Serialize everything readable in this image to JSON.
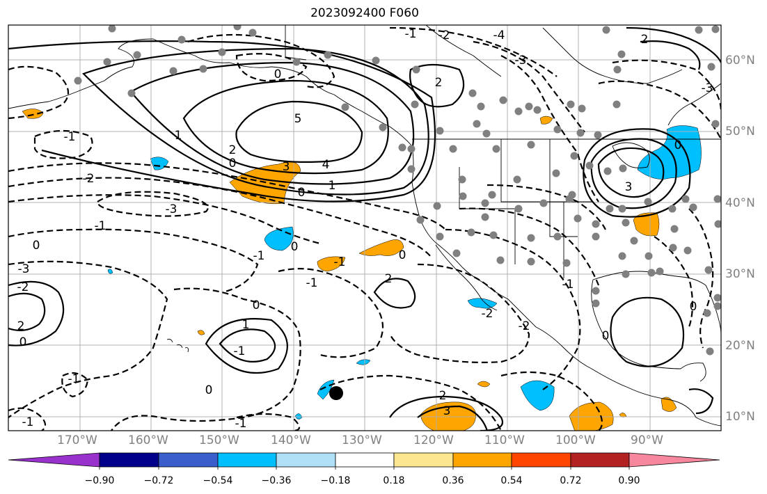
{
  "title": "2023092400 F060",
  "lon_labels": [
    "170°W",
    "160°W",
    "150°W",
    "140°W",
    "130°W",
    "120°W",
    "110°W",
    "100°W",
    "90°W"
  ],
  "lat_labels": [
    "60°N",
    "50°N",
    "40°N",
    "30°N",
    "20°N",
    "10°N"
  ],
  "colorbar": {
    "ticks": [
      "−0.90",
      "−0.72",
      "−0.54",
      "−0.36",
      "−0.18",
      "0.18",
      "0.36",
      "0.54",
      "0.72",
      "0.90"
    ],
    "colors": [
      "#9932cc",
      "#00008b",
      "#3a5fcd",
      "#00bfff",
      "#b0e0f8",
      "#ffffff",
      "#fce68f",
      "#ffa500",
      "#ff4500",
      "#b22222",
      "#f7879d"
    ]
  },
  "contour_labels": [
    "-1",
    "-2",
    "-3",
    "-4",
    "0",
    "-1",
    "1",
    "2",
    "3",
    "4",
    "5",
    "0",
    "1",
    "2",
    "-3",
    "-2",
    "-1",
    "0",
    "-3",
    "-2",
    "0",
    "0",
    "-1",
    "-1",
    "0",
    "0",
    "-1",
    "0",
    "1",
    "-1",
    "2",
    "2",
    "0",
    "-1",
    "-2",
    "-1",
    "-2",
    "2",
    "3",
    "-1",
    "0",
    "0",
    "-3",
    "0",
    "3",
    "2",
    "-1"
  ],
  "markers": {
    "filled_dot_color": "#808080",
    "storm_color": "#000000"
  },
  "colors": {
    "shading_blue": "#00bfff",
    "shading_orange": "#ffa500",
    "grid": "#b0b0b0"
  }
}
